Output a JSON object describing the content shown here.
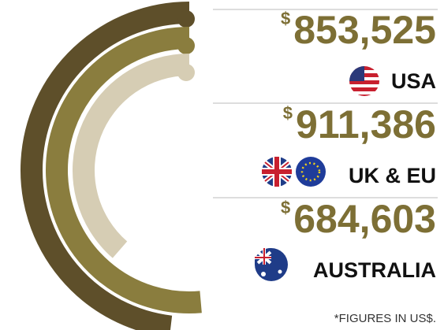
{
  "chart_data": {
    "type": "radial-bar",
    "categories": [
      "USA",
      "UK & EU",
      "AUSTRALIA"
    ],
    "values": [
      853525,
      911386,
      684603
    ],
    "value_labels": [
      "853,525",
      "911,386",
      "684,603"
    ],
    "currency": "$",
    "colors": [
      "#5e4f2a",
      "#8a7d3e",
      "#d6cdb4"
    ],
    "note": "*FIGURES IN US$."
  }
}
